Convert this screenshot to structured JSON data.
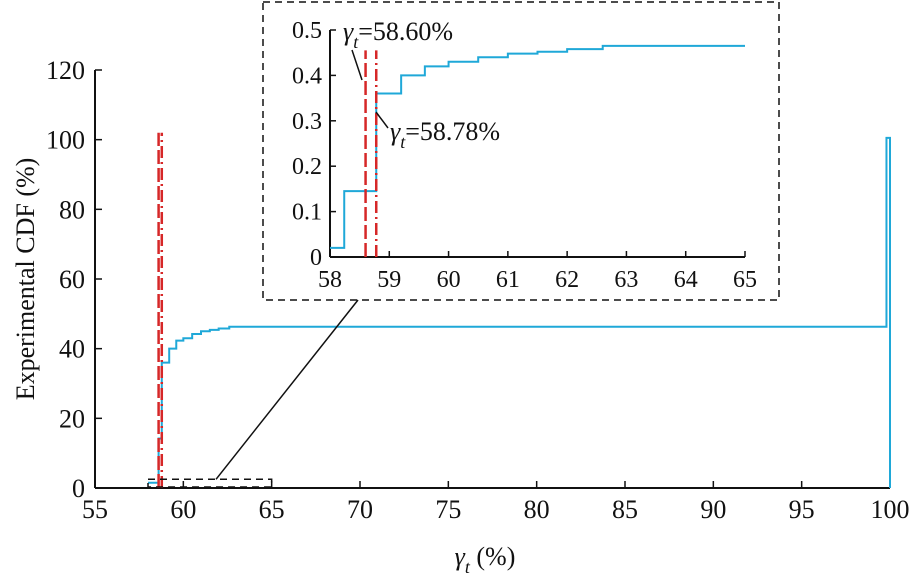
{
  "chart_data": {
    "type": "line",
    "series_color": "#1fa8d8",
    "threshold_color": "#d62728",
    "main": {
      "xlabel_symbol": "γ",
      "xlabel_subscript": "t",
      "xlabel_unit": " (%)",
      "ylabel": "Experimental CDF (%)",
      "xlim": [
        55,
        100
      ],
      "ylim": [
        0,
        120
      ],
      "xticks": [
        55,
        60,
        65,
        70,
        75,
        80,
        85,
        90,
        95,
        100
      ],
      "yticks": [
        0,
        20,
        40,
        60,
        80,
        100,
        120
      ],
      "grid": false,
      "step_x": [
        58.0,
        58.6,
        58.78,
        59.2,
        59.6,
        60.0,
        60.5,
        61.0,
        61.5,
        62.0,
        62.6,
        99.8,
        99.8,
        100.0
      ],
      "step_y": [
        1.5,
        14.2,
        36.0,
        40.0,
        42.3,
        43.0,
        44.2,
        45.0,
        45.4,
        45.8,
        46.3,
        46.3,
        100.5,
        0.0
      ],
      "thresholds": [
        {
          "x": 58.6,
          "style": "dashed",
          "top": 102
        },
        {
          "x": 58.78,
          "style": "dashdot",
          "top": 102
        }
      ],
      "zoom_region": {
        "x": [
          58,
          65
        ],
        "y": [
          0,
          2.5
        ]
      }
    },
    "inset": {
      "xlim": [
        58,
        65
      ],
      "ylim": [
        0,
        0.5
      ],
      "xticks": [
        58,
        59,
        60,
        61,
        62,
        63,
        64,
        65
      ],
      "yticks": [
        0,
        0.1,
        0.2,
        0.3,
        0.4,
        0.5
      ],
      "ytick_labels": [
        "0",
        "0.1",
        "0.2",
        "0.3",
        "0.4",
        "0.5"
      ],
      "step_x": [
        58.0,
        58.24,
        58.24,
        58.78,
        58.78,
        59.2,
        59.2,
        59.6,
        59.6,
        60.0,
        60.0,
        60.5,
        60.5,
        61.0,
        61.0,
        61.5,
        61.5,
        62.0,
        62.0,
        62.6,
        62.6,
        65.0
      ],
      "step_y": [
        0.02,
        0.02,
        0.145,
        0.145,
        0.36,
        0.36,
        0.4,
        0.4,
        0.42,
        0.42,
        0.43,
        0.43,
        0.44,
        0.44,
        0.448,
        0.448,
        0.452,
        0.452,
        0.458,
        0.458,
        0.465,
        0.465
      ],
      "thresholds": [
        {
          "x": 58.6,
          "style": "dashed",
          "top": 0.455
        },
        {
          "x": 58.78,
          "style": "dashdot",
          "top": 0.455
        }
      ]
    },
    "annotations": [
      {
        "symbol": "γ",
        "subscript": "t",
        "value": "=58.60%"
      },
      {
        "symbol": "γ",
        "subscript": "t",
        "value": "=58.78%"
      }
    ]
  }
}
